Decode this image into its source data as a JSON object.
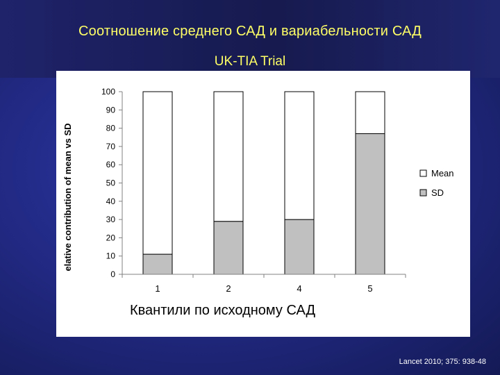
{
  "slide": {
    "title": "Соотношение среднего САД и вариабельности САД",
    "subtitle": "UK-TIA Trial",
    "citation": "Lancet 2010; 375: 938-48"
  },
  "colors": {
    "title": "#ffff66",
    "mean_fill": "#ffffff",
    "sd_fill": "#c0c0c0",
    "bar_stroke": "#000000"
  },
  "chart_data": {
    "type": "bar",
    "stacked": true,
    "categories": [
      "1",
      "2",
      "4",
      "5"
    ],
    "series": [
      {
        "name": "SD",
        "values": [
          11,
          29,
          30,
          77
        ]
      },
      {
        "name": "Mean",
        "values": [
          89,
          71,
          70,
          23
        ]
      }
    ],
    "xlabel": "Квантили по исходному САД",
    "ylabel": "elative contribution of mean vs SD",
    "ylim": [
      0,
      100
    ],
    "yticks": [
      0,
      10,
      20,
      30,
      40,
      50,
      60,
      70,
      80,
      90,
      100
    ],
    "legend": {
      "placement": "right",
      "entries": [
        "Mean",
        "SD"
      ]
    },
    "grid": false
  }
}
